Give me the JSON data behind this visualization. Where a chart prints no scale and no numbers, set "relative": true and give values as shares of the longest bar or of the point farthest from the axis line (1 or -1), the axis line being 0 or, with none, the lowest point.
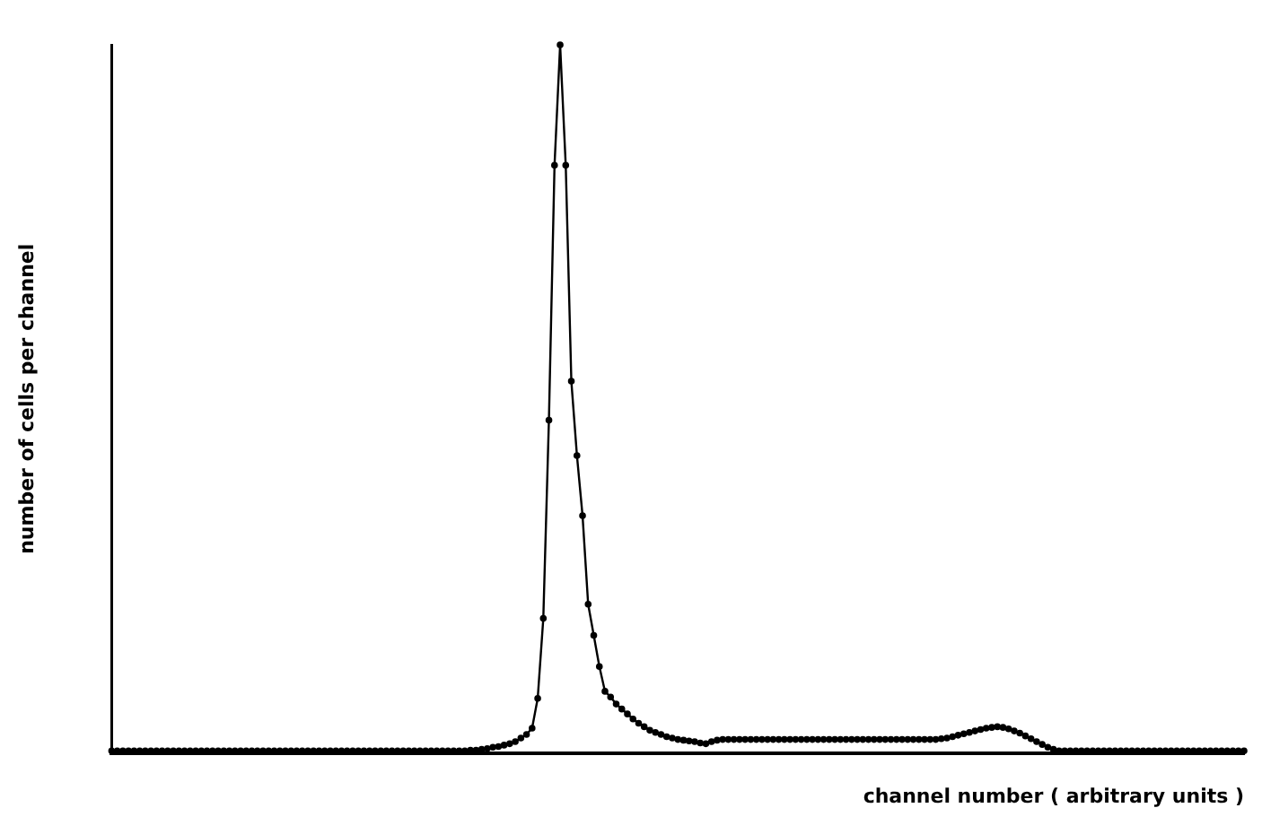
{
  "chart_data": {
    "type": "line",
    "xlabel": "channel number ( arbitrary units )",
    "ylabel": "number of cells per channel",
    "relative": true,
    "color": "#000000",
    "marker": "circle",
    "grid": false,
    "legend": false,
    "categories": [
      null,
      null,
      null,
      null,
      null,
      null,
      null,
      null,
      null,
      null,
      null,
      null,
      null,
      null,
      null,
      null,
      null,
      null,
      null,
      null,
      null,
      null,
      null,
      null,
      null,
      null,
      null,
      null,
      null,
      null,
      null,
      null,
      null,
      null,
      null,
      null,
      null,
      null,
      null,
      null,
      null,
      null,
      null,
      null,
      null,
      null,
      null,
      null,
      null,
      null,
      null,
      null,
      null,
      null,
      null,
      null,
      null,
      null,
      null,
      null,
      null,
      null,
      null,
      null,
      null,
      null,
      null,
      null,
      null,
      null,
      null,
      null,
      null,
      null,
      null,
      null,
      null,
      null,
      null,
      null,
      null,
      null,
      null,
      null,
      null,
      null,
      null,
      null,
      null,
      null,
      null,
      null,
      null,
      null,
      null,
      null,
      null,
      null,
      null,
      null,
      null,
      null,
      null,
      null,
      null,
      null,
      null,
      null,
      null,
      null,
      null,
      null,
      null,
      null,
      null,
      null,
      null,
      null,
      null,
      null,
      null,
      null,
      null,
      null,
      null,
      null,
      null,
      null,
      null,
      null,
      null,
      null,
      null,
      null,
      null,
      null,
      null,
      null,
      null,
      null,
      null,
      null,
      null,
      null,
      null,
      null,
      null,
      null,
      null,
      null,
      null,
      null,
      null,
      null,
      null,
      null,
      null,
      null,
      null,
      null,
      null,
      null,
      null,
      null,
      null,
      null,
      null,
      null,
      null,
      null,
      null,
      null,
      null,
      null,
      null,
      null,
      null,
      null,
      null,
      null,
      null,
      null,
      null,
      null,
      null,
      null,
      null,
      null,
      null,
      null,
      null,
      null,
      null,
      null,
      null,
      null,
      null,
      null,
      null,
      null,
      null,
      null,
      null
    ],
    "values": [
      0.003,
      0.003,
      0.003,
      0.003,
      0.003,
      0.003,
      0.003,
      0.003,
      0.003,
      0.003,
      0.003,
      0.003,
      0.003,
      0.003,
      0.003,
      0.003,
      0.003,
      0.003,
      0.003,
      0.003,
      0.003,
      0.003,
      0.003,
      0.003,
      0.003,
      0.003,
      0.003,
      0.003,
      0.003,
      0.003,
      0.003,
      0.003,
      0.003,
      0.003,
      0.003,
      0.003,
      0.003,
      0.003,
      0.003,
      0.003,
      0.003,
      0.003,
      0.003,
      0.003,
      0.003,
      0.003,
      0.003,
      0.003,
      0.003,
      0.003,
      0.003,
      0.003,
      0.003,
      0.003,
      0.003,
      0.003,
      0.003,
      0.003,
      0.003,
      0.003,
      0.003,
      0.003,
      0.003,
      0.003,
      0.004,
      0.004,
      0.005,
      0.006,
      0.008,
      0.009,
      0.011,
      0.013,
      0.016,
      0.021,
      0.026,
      0.035,
      0.077,
      0.19,
      0.47,
      0.83,
      1,
      0.83,
      0.525,
      0.42,
      0.335,
      0.21,
      0.166,
      0.122,
      0.087,
      0.079,
      0.069,
      0.062,
      0.055,
      0.048,
      0.042,
      0.037,
      0.032,
      0.029,
      0.026,
      0.023,
      0.021,
      0.019,
      0.018,
      0.017,
      0.016,
      0.014,
      0.013,
      0.016,
      0.018,
      0.019,
      0.019,
      0.019,
      0.019,
      0.019,
      0.019,
      0.019,
      0.019,
      0.019,
      0.019,
      0.019,
      0.019,
      0.019,
      0.019,
      0.019,
      0.019,
      0.019,
      0.019,
      0.019,
      0.019,
      0.019,
      0.019,
      0.019,
      0.019,
      0.019,
      0.019,
      0.019,
      0.019,
      0.019,
      0.019,
      0.019,
      0.019,
      0.019,
      0.019,
      0.019,
      0.019,
      0.019,
      0.019,
      0.019,
      0.02,
      0.021,
      0.023,
      0.025,
      0.027,
      0.029,
      0.031,
      0.033,
      0.035,
      0.036,
      0.037,
      0.036,
      0.034,
      0.031,
      0.028,
      0.024,
      0.02,
      0.016,
      0.012,
      0.008,
      0.005,
      0.003,
      0.003,
      0.003,
      0.003,
      0.003,
      0.003,
      0.003,
      0.003,
      0.003,
      0.003,
      0.003,
      0.003,
      0.003,
      0.003,
      0.003,
      0.003,
      0.003,
      0.003,
      0.003,
      0.003,
      0.003,
      0.003,
      0.003,
      0.003,
      0.003,
      0.003,
      0.003,
      0.003,
      0.003,
      0.003,
      0.003,
      0.003,
      0.003,
      0.003
    ]
  }
}
